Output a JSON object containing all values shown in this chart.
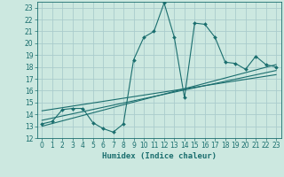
{
  "title": "",
  "xlabel": "Humidex (Indice chaleur)",
  "bg_color": "#cce8e0",
  "grid_color": "#aacccc",
  "line_color": "#1a6e6e",
  "xlim": [
    -0.5,
    23.5
  ],
  "ylim": [
    12,
    23.5
  ],
  "xticks": [
    0,
    1,
    2,
    3,
    4,
    5,
    6,
    7,
    8,
    9,
    10,
    11,
    12,
    13,
    14,
    15,
    16,
    17,
    18,
    19,
    20,
    21,
    22,
    23
  ],
  "yticks": [
    12,
    13,
    14,
    15,
    16,
    17,
    18,
    19,
    20,
    21,
    22,
    23
  ],
  "main_x": [
    0,
    1,
    2,
    3,
    4,
    5,
    6,
    7,
    8,
    9,
    10,
    11,
    12,
    13,
    14,
    15,
    16,
    17,
    18,
    19,
    20,
    21,
    22,
    23
  ],
  "main_y": [
    13.2,
    13.4,
    14.4,
    14.5,
    14.5,
    13.3,
    12.8,
    12.5,
    13.2,
    18.6,
    20.5,
    21.0,
    23.4,
    20.5,
    15.4,
    21.7,
    21.6,
    20.5,
    18.4,
    18.3,
    17.8,
    18.9,
    18.2,
    18.0
  ],
  "reg_lines": [
    [
      13.0,
      18.2
    ],
    [
      13.5,
      17.7
    ],
    [
      14.3,
      17.35
    ]
  ],
  "xlabel_fontsize": 6.5,
  "tick_fontsize": 5.5
}
